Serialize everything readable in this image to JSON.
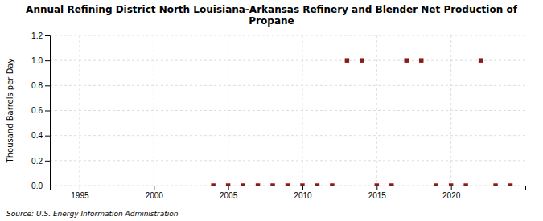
{
  "chart_data": {
    "type": "scatter",
    "title": "Annual Refining District North Louisiana-Arkansas Refinery and Blender Net Production of\nPropane",
    "y_label": "Thousand Barrels per Day",
    "source": "Source: U.S. Energy Information Administration",
    "x": [
      2004,
      2005,
      2006,
      2007,
      2008,
      2009,
      2010,
      2011,
      2012,
      2015,
      2016,
      2019,
      2020,
      2021,
      2023,
      2024,
      2013,
      2014,
      2017,
      2018,
      2022
    ],
    "values": [
      0.0,
      0.0,
      0.0,
      0.0,
      0.0,
      0.0,
      0.0,
      0.0,
      0.0,
      0.0,
      0.0,
      0.0,
      0.0,
      0.0,
      0.0,
      0.0,
      1.0,
      1.0,
      1.0,
      1.0,
      1.0
    ],
    "color": "#8b1a1a",
    "marker": "square",
    "xlim": [
      1993,
      2025
    ],
    "ylim": [
      0.0,
      1.2
    ],
    "xticks": [
      1995,
      2000,
      2005,
      2010,
      2015,
      2020
    ],
    "yticks": [
      {
        "value": 0.0,
        "label": "0.0"
      },
      0.2,
      0.4,
      0.6,
      0.8,
      {
        "value": 1.0,
        "label": "1.0"
      },
      1.2
    ],
    "grid": true
  }
}
